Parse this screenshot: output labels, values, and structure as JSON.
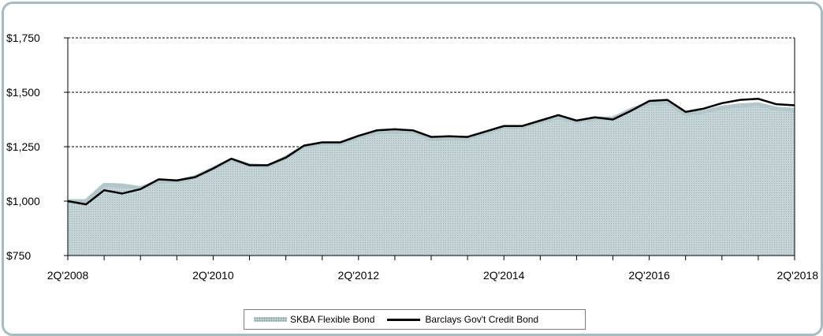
{
  "chart_data": {
    "type": "area",
    "title": "",
    "xlabel": "",
    "ylabel": "",
    "ylim": [
      750,
      1750
    ],
    "y_ticks": [
      "$750",
      "$1,000",
      "$1,250",
      "$1,500",
      "$1,750"
    ],
    "y_tick_values": [
      750,
      1000,
      1250,
      1500,
      1750
    ],
    "x_tick_labels": [
      "2Q'2008",
      "2Q'2010",
      "2Q'2012",
      "2Q'2014",
      "2Q'2016",
      "2Q'2018"
    ],
    "gridlines": "dashed, horizontal",
    "legend": {
      "placement": "bottom"
    },
    "x": [
      "2Q'2008",
      "3Q'2008",
      "4Q'2008",
      "1Q'2009",
      "2Q'2009",
      "3Q'2009",
      "4Q'2009",
      "1Q'2010",
      "2Q'2010",
      "3Q'2010",
      "4Q'2010",
      "1Q'2011",
      "2Q'2011",
      "3Q'2011",
      "4Q'2011",
      "1Q'2012",
      "2Q'2012",
      "3Q'2012",
      "4Q'2012",
      "1Q'2013",
      "2Q'2013",
      "3Q'2013",
      "4Q'2013",
      "1Q'2014",
      "2Q'2014",
      "3Q'2014",
      "4Q'2014",
      "1Q'2015",
      "2Q'2015",
      "3Q'2015",
      "4Q'2015",
      "1Q'2016",
      "2Q'2016",
      "3Q'2016",
      "4Q'2016",
      "1Q'2017",
      "2Q'2017",
      "3Q'2017",
      "4Q'2017",
      "1Q'2018",
      "2Q'2018"
    ],
    "series": [
      {
        "name": "SKBA Flexible Bond",
        "style": "area",
        "color": "#bfcfd2",
        "values": [
          1000,
          1000,
          1075,
          1072,
          1060,
          1090,
          1090,
          1110,
          1150,
          1190,
          1165,
          1160,
          1200,
          1250,
          1265,
          1265,
          1295,
          1315,
          1320,
          1320,
          1285,
          1290,
          1290,
          1315,
          1340,
          1340,
          1365,
          1385,
          1365,
          1380,
          1380,
          1420,
          1450,
          1455,
          1400,
          1410,
          1430,
          1440,
          1445,
          1425,
          1420
        ]
      },
      {
        "name": "Barclays Gov't Credit Bond",
        "style": "line",
        "color": "#000000",
        "values": [
          1000,
          985,
          1050,
          1035,
          1055,
          1100,
          1095,
          1110,
          1150,
          1195,
          1165,
          1165,
          1200,
          1255,
          1270,
          1270,
          1300,
          1325,
          1330,
          1325,
          1295,
          1298,
          1295,
          1320,
          1345,
          1345,
          1370,
          1395,
          1370,
          1385,
          1375,
          1415,
          1460,
          1465,
          1410,
          1425,
          1450,
          1465,
          1470,
          1445,
          1440
        ]
      }
    ]
  },
  "legend_items": {
    "area_label": "SKBA Flexible Bond",
    "line_label": "Barclays Gov't Credit Bond"
  }
}
